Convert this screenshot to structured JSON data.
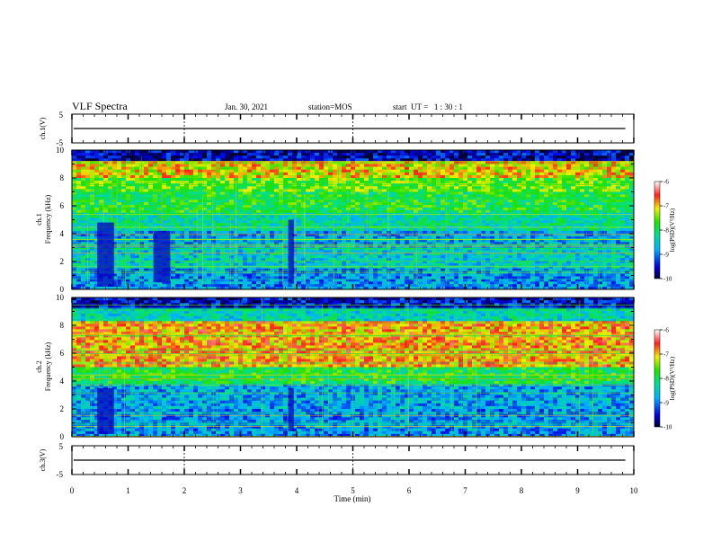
{
  "header": {
    "title": "VLF Spectra",
    "date": "Jan. 30, 2021",
    "station": "station=MOS",
    "start_time": "start  UT =   1 : 30 : 1"
  },
  "chart_data": [
    {
      "type": "line",
      "name": "ch1-voltage",
      "ylabel": "ch.1(V)",
      "ylim": [
        -5,
        5
      ],
      "yticks": [
        "5",
        "-5"
      ],
      "xlim": [
        0,
        10
      ],
      "x": [
        0.03,
        9.85
      ],
      "y": [
        0,
        0
      ]
    },
    {
      "type": "heatmap",
      "name": "ch1-spectrogram",
      "ylabel_1": "ch.1",
      "ylabel_2": "Frequency (kHz)",
      "xlim": [
        0,
        10
      ],
      "ylim": [
        0,
        10
      ],
      "yticks": [
        "0",
        "2",
        "4",
        "6",
        "8",
        "10"
      ],
      "colorbar": {
        "label": "log(PSD)(V²/Hz)",
        "range": [
          -10,
          -6
        ],
        "ticks": [
          "-6",
          "-7",
          "-8",
          "-9",
          "-10"
        ]
      },
      "bands": [
        {
          "fmin": 9.2,
          "fmax": 10.0,
          "level": -9.6
        },
        {
          "fmin": 8.0,
          "fmax": 9.2,
          "level": -7.1
        },
        {
          "fmin": 7.0,
          "fmax": 8.0,
          "level": -7.6
        },
        {
          "fmin": 5.5,
          "fmax": 7.0,
          "level": -7.9
        },
        {
          "fmin": 4.2,
          "fmax": 5.5,
          "level": -8.3
        },
        {
          "fmin": 3.0,
          "fmax": 4.2,
          "level": -8.8
        },
        {
          "fmin": 1.5,
          "fmax": 3.0,
          "level": -8.5
        },
        {
          "fmin": 0.0,
          "fmax": 1.5,
          "level": -8.9
        }
      ],
      "dark_segments": [
        {
          "t0": 0.45,
          "t1": 0.75,
          "fmin": 0.2,
          "fmax": 4.8
        },
        {
          "t0": 1.45,
          "t1": 1.75,
          "fmin": 0.5,
          "fmax": 4.2
        },
        {
          "t0": 3.85,
          "t1": 3.95,
          "fmin": 0.4,
          "fmax": 5.0
        }
      ]
    },
    {
      "type": "heatmap",
      "name": "ch2-spectrogram",
      "ylabel_1": "ch.2",
      "ylabel_2": "Frequency (kHz)",
      "xlim": [
        0,
        10
      ],
      "ylim": [
        0,
        10
      ],
      "yticks": [
        "0",
        "2",
        "4",
        "6",
        "8",
        "10"
      ],
      "colorbar": {
        "label": "log(PSD)(V²/Hz)",
        "range": [
          -10,
          -6
        ],
        "ticks": [
          "-6",
          "-7",
          "-8",
          "-9",
          "-10"
        ]
      },
      "bands": [
        {
          "fmin": 9.2,
          "fmax": 10.0,
          "level": -9.5
        },
        {
          "fmin": 8.3,
          "fmax": 9.2,
          "level": -8.4
        },
        {
          "fmin": 5.0,
          "fmax": 8.3,
          "level": -6.9
        },
        {
          "fmin": 3.8,
          "fmax": 5.0,
          "level": -7.9
        },
        {
          "fmin": 2.0,
          "fmax": 3.8,
          "level": -8.8
        },
        {
          "fmin": 0.0,
          "fmax": 2.0,
          "level": -8.9
        }
      ],
      "dark_segments": [
        {
          "t0": 0.45,
          "t1": 0.75,
          "fmin": 0.2,
          "fmax": 3.5
        },
        {
          "t0": 3.85,
          "t1": 3.95,
          "fmin": 0.4,
          "fmax": 3.5
        }
      ]
    },
    {
      "type": "line",
      "name": "ch3-voltage",
      "ylabel": "ch.3(V)",
      "ylim": [
        -5,
        5
      ],
      "yticks": [
        "5",
        "-5"
      ],
      "xlim": [
        0,
        10
      ],
      "xlabel": "Time (min)",
      "xticks": [
        "0",
        "1",
        "2",
        "3",
        "4",
        "5",
        "6",
        "7",
        "8",
        "9",
        "10"
      ],
      "x": [
        0.03,
        9.85
      ],
      "y": [
        0,
        0
      ]
    }
  ]
}
